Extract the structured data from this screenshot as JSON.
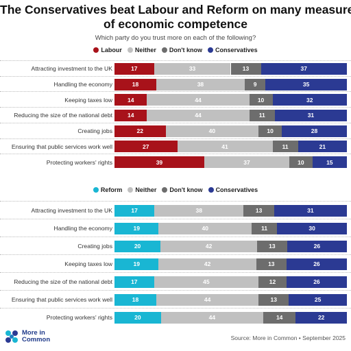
{
  "title_line1": "The Conservatives beat Labour and Reform on many measures",
  "title_line2": "of economic competence",
  "subtitle": "Which party do you trust more on each of the following?",
  "source": "Source: More in Common • September 2025",
  "logo_text": "More in Common",
  "chart_data": [
    {
      "type": "bar",
      "orientation": "horizontal-stacked-100",
      "legend_position": "top-center",
      "categories": [
        "Attracting investment to the UK",
        "Handling the economy",
        "Keeping taxes low",
        "Reducing the size of the national debt",
        "Creating jobs",
        "Ensuring that public services work well",
        "Protecting workers' rights"
      ],
      "series": [
        {
          "name": "Labour",
          "color": "#a8121a",
          "values": [
            17,
            18,
            14,
            14,
            22,
            27,
            39
          ]
        },
        {
          "name": "Neither",
          "color": "#c0c0c0",
          "values": [
            33,
            38,
            44,
            44,
            40,
            41,
            37
          ]
        },
        {
          "name": "Don't know",
          "color": "#6d6d6d",
          "values": [
            13,
            9,
            10,
            11,
            10,
            11,
            10
          ]
        },
        {
          "name": "Conservatives",
          "color": "#2b3a93",
          "values": [
            37,
            35,
            32,
            31,
            28,
            21,
            15
          ]
        }
      ]
    },
    {
      "type": "bar",
      "orientation": "horizontal-stacked-100",
      "legend_position": "top-center",
      "categories": [
        "Attracting investment to the UK",
        "Handling the economy",
        "Creating jobs",
        "Keeping taxes low",
        "Reducing the size of the national debt",
        "Ensuring that public services work well",
        "Protecting workers' rights"
      ],
      "series": [
        {
          "name": "Reform",
          "color": "#19b6d3",
          "values": [
            17,
            19,
            20,
            19,
            17,
            18,
            20
          ]
        },
        {
          "name": "Neither",
          "color": "#c0c0c0",
          "values": [
            38,
            40,
            42,
            42,
            45,
            44,
            44
          ]
        },
        {
          "name": "Don't know",
          "color": "#6d6d6d",
          "values": [
            13,
            11,
            13,
            13,
            12,
            13,
            14
          ]
        },
        {
          "name": "Conservatives",
          "color": "#2b3a93",
          "values": [
            31,
            30,
            26,
            26,
            26,
            25,
            22
          ]
        }
      ]
    }
  ]
}
